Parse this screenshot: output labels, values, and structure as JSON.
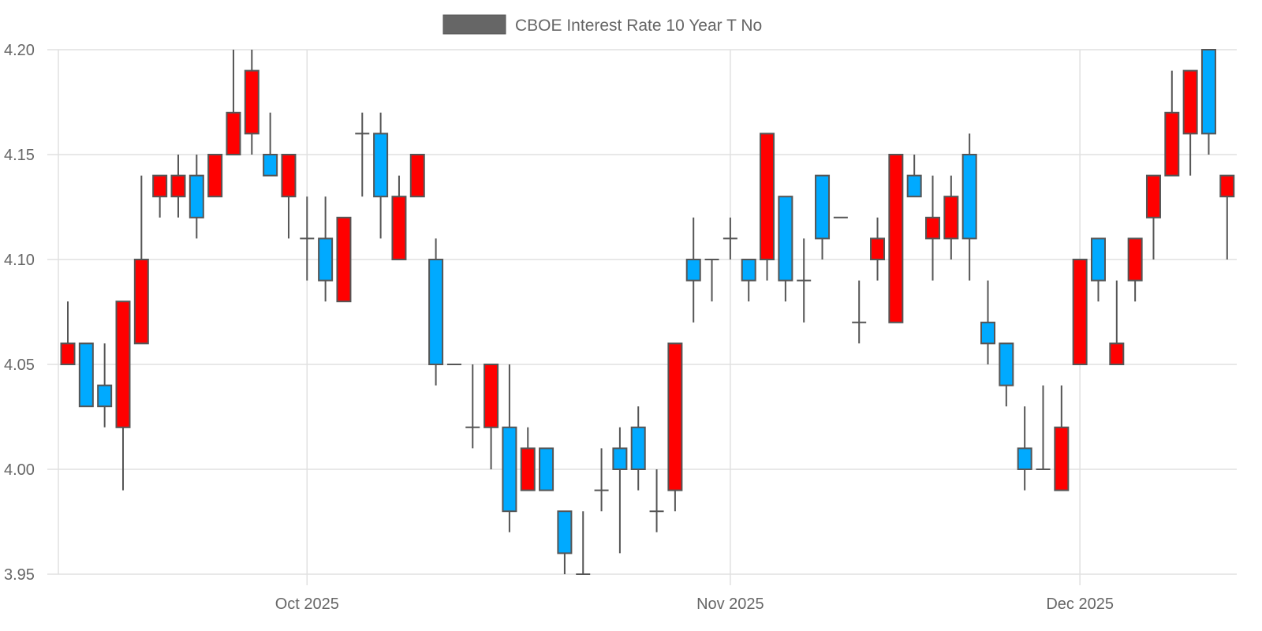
{
  "chart_data": {
    "type": "candlestick",
    "title": "",
    "xlabel": "",
    "ylabel": "",
    "legend": {
      "label": "CBOE Interest Rate 10 Year T No",
      "placement": "top-center",
      "swatch_color": "#666666"
    },
    "ylim": [
      3.95,
      4.2
    ],
    "yticks": [
      "3.95",
      "4.00",
      "4.05",
      "4.10",
      "4.15",
      "4.20"
    ],
    "xticks": [
      {
        "label": "Oct 2025",
        "index": 13
      },
      {
        "label": "Nov 2025",
        "index": 36
      },
      {
        "label": "Dec 2025",
        "index": 55
      }
    ],
    "grid": true,
    "colors": {
      "increasing": "#ff0000",
      "decreasing": "#00aaff",
      "outline": "#555555",
      "grid": "#e0e0e0"
    },
    "ohlc_fields": [
      "open",
      "high",
      "low",
      "close"
    ],
    "ohlc": [
      [
        4.05,
        4.08,
        4.05,
        4.06
      ],
      [
        4.06,
        4.06,
        4.03,
        4.03
      ],
      [
        4.04,
        4.06,
        4.02,
        4.03
      ],
      [
        4.02,
        4.08,
        3.99,
        4.08
      ],
      [
        4.06,
        4.14,
        4.06,
        4.1
      ],
      [
        4.13,
        4.14,
        4.12,
        4.14
      ],
      [
        4.13,
        4.15,
        4.12,
        4.14
      ],
      [
        4.14,
        4.15,
        4.11,
        4.12
      ],
      [
        4.13,
        4.15,
        4.13,
        4.15
      ],
      [
        4.15,
        4.2,
        4.15,
        4.17
      ],
      [
        4.16,
        4.2,
        4.15,
        4.19
      ],
      [
        4.15,
        4.17,
        4.14,
        4.14
      ],
      [
        4.13,
        4.15,
        4.11,
        4.15
      ],
      [
        4.11,
        4.13,
        4.09,
        4.11
      ],
      [
        4.11,
        4.13,
        4.08,
        4.09
      ],
      [
        4.08,
        4.12,
        4.08,
        4.12
      ],
      [
        4.16,
        4.17,
        4.13,
        4.16
      ],
      [
        4.16,
        4.17,
        4.11,
        4.13
      ],
      [
        4.1,
        4.14,
        4.1,
        4.13
      ],
      [
        4.13,
        4.15,
        4.13,
        4.15
      ],
      [
        4.1,
        4.11,
        4.04,
        4.05
      ],
      [
        4.05,
        4.05,
        4.05,
        4.05
      ],
      [
        4.02,
        4.05,
        4.01,
        4.02
      ],
      [
        4.02,
        4.05,
        4.0,
        4.05
      ],
      [
        4.02,
        4.05,
        3.97,
        3.98
      ],
      [
        3.99,
        4.02,
        3.99,
        4.01
      ],
      [
        4.01,
        4.01,
        3.99,
        3.99
      ],
      [
        3.98,
        3.98,
        3.95,
        3.96
      ],
      [
        3.95,
        3.98,
        3.95,
        3.95
      ],
      [
        3.99,
        4.01,
        3.98,
        3.99
      ],
      [
        4.01,
        4.02,
        3.96,
        4.0
      ],
      [
        4.02,
        4.03,
        3.99,
        4.0
      ],
      [
        3.98,
        4.0,
        3.97,
        3.98
      ],
      [
        3.99,
        4.06,
        3.98,
        4.06
      ],
      [
        4.1,
        4.12,
        4.07,
        4.09
      ],
      [
        4.1,
        4.1,
        4.08,
        4.1
      ],
      [
        4.11,
        4.12,
        4.1,
        4.11
      ],
      [
        4.1,
        4.1,
        4.08,
        4.09
      ],
      [
        4.1,
        4.16,
        4.09,
        4.16
      ],
      [
        4.13,
        4.13,
        4.08,
        4.09
      ],
      [
        4.09,
        4.11,
        4.07,
        4.09
      ],
      [
        4.14,
        4.14,
        4.1,
        4.11
      ],
      [
        4.12,
        4.12,
        4.12,
        4.12
      ],
      [
        4.07,
        4.09,
        4.06,
        4.07
      ],
      [
        4.1,
        4.12,
        4.09,
        4.11
      ],
      [
        4.07,
        4.15,
        4.07,
        4.15
      ],
      [
        4.14,
        4.15,
        4.13,
        4.13
      ],
      [
        4.11,
        4.14,
        4.09,
        4.12
      ],
      [
        4.11,
        4.14,
        4.1,
        4.13
      ],
      [
        4.15,
        4.16,
        4.09,
        4.11
      ],
      [
        4.07,
        4.09,
        4.05,
        4.06
      ],
      [
        4.06,
        4.06,
        4.03,
        4.04
      ],
      [
        4.01,
        4.03,
        3.99,
        4.0
      ],
      [
        4.0,
        4.04,
        4.0,
        4.0
      ],
      [
        3.99,
        4.04,
        3.99,
        4.02
      ],
      [
        4.05,
        4.1,
        4.05,
        4.1
      ],
      [
        4.11,
        4.11,
        4.08,
        4.09
      ],
      [
        4.05,
        4.09,
        4.05,
        4.06
      ],
      [
        4.09,
        4.11,
        4.08,
        4.11
      ],
      [
        4.12,
        4.14,
        4.1,
        4.14
      ],
      [
        4.14,
        4.19,
        4.14,
        4.17
      ],
      [
        4.16,
        4.19,
        4.14,
        4.19
      ],
      [
        4.2,
        4.2,
        4.15,
        4.16
      ],
      [
        4.13,
        4.14,
        4.1,
        4.14
      ]
    ]
  }
}
